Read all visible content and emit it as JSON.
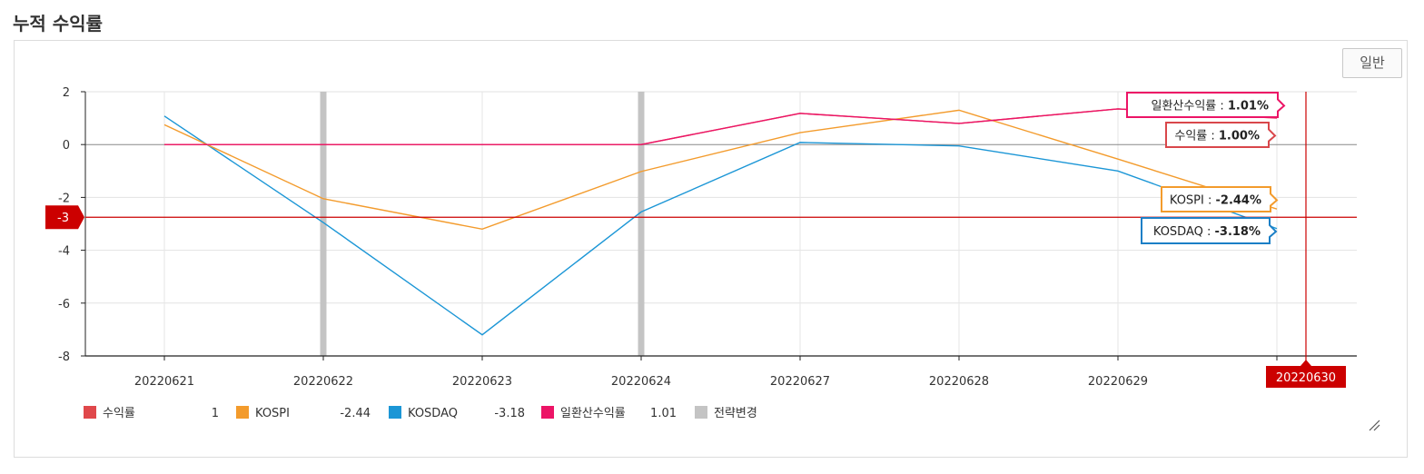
{
  "page": {
    "title": "누적 수익률"
  },
  "toolbar": {
    "mode_label": "일반"
  },
  "chart_data": {
    "type": "line",
    "title": "",
    "xlabel": "",
    "ylabel": "",
    "categories": [
      "20220621",
      "20220622",
      "20220623",
      "20220624",
      "20220627",
      "20220628",
      "20220629",
      "20220630"
    ],
    "ylim": [
      -8,
      2
    ],
    "yticks": [
      2,
      0,
      -2,
      -4,
      -6,
      -8
    ],
    "yticks_text": [
      "2",
      "0",
      "-2",
      "-4",
      "-6",
      "-8"
    ],
    "grid": true,
    "series": [
      {
        "name": "수익률",
        "color": "#e0484b",
        "values": [
          0,
          0,
          0,
          0,
          1.18,
          0.8,
          1.35,
          1.0
        ],
        "legend_value": "1"
      },
      {
        "name": "KOSPI",
        "color": "#f39b2c",
        "values": [
          0.75,
          -2.05,
          -3.2,
          -1.02,
          0.45,
          1.3,
          -0.55,
          -2.44
        ],
        "legend_value": "-2.44"
      },
      {
        "name": "KOSDAQ",
        "color": "#1b96d6",
        "values": [
          1.08,
          -2.95,
          -7.2,
          -2.55,
          0.08,
          -0.05,
          -1.0,
          -3.18
        ],
        "legend_value": "-3.18"
      },
      {
        "name": "일환산수익률",
        "color": "#ec1466",
        "values": [
          0,
          0,
          0,
          0,
          1.18,
          0.8,
          1.35,
          1.01
        ],
        "legend_value": "1.01"
      }
    ],
    "strategy_change": {
      "name": "전략변경",
      "color": "#c4c4c4",
      "at_categories": [
        "20220622",
        "20220624"
      ]
    },
    "crosshair": {
      "y_value": -2.75,
      "y_label": "-3",
      "x_label": "20220630",
      "color": "#cc0000"
    },
    "tooltips": [
      {
        "series": "일환산수익률",
        "label": "일환산수익률 : ",
        "value": "1.01%",
        "color": "#ec1466"
      },
      {
        "series": "수익률",
        "label": "수익률 : ",
        "value": "1.00%",
        "color": "#d9474b"
      },
      {
        "series": "KOSPI",
        "label": "KOSPI : ",
        "value": "-2.44%",
        "color": "#f39b2c"
      },
      {
        "series": "KOSDAQ",
        "label": "KOSDAQ : ",
        "value": "-3.18%",
        "color": "#1b7fc6"
      }
    ],
    "legend_position": "bottom-left"
  }
}
